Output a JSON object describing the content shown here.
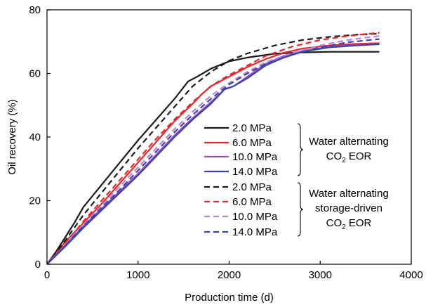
{
  "chart_data": {
    "type": "line",
    "title": "",
    "xlabel": "Production time (d)",
    "ylabel": "Oil recovery (%)",
    "xlim": [
      0,
      4000
    ],
    "ylim": [
      0,
      80
    ],
    "xticks": [
      0,
      1000,
      2000,
      3000,
      4000
    ],
    "yticks": [
      0,
      20,
      40,
      60,
      80
    ],
    "grid": false,
    "legend_position": "center-right",
    "legend_groups": [
      {
        "label_line1": "Water alternating",
        "label_line2": "CO",
        "label_sub": "2",
        "label_line2_after": " EOR",
        "label_line3": ""
      },
      {
        "label_line1": "Water alternating",
        "label_line2": "storage-driven",
        "label_line3": "CO",
        "label_sub": "2",
        "label_line3_after": " EOR"
      }
    ],
    "series": [
      {
        "name": "2.0 MPa",
        "group": 0,
        "color": "#1a1a1a",
        "dash": "solid",
        "x": [
          0,
          100,
          200,
          300,
          400,
          600,
          800,
          1000,
          1200,
          1400,
          1550,
          1650,
          1800,
          2000,
          2200,
          2500,
          2800,
          3100,
          3400,
          3650
        ],
        "y": [
          0,
          4,
          8.5,
          13,
          18,
          25,
          32,
          39,
          45.5,
          52,
          57.5,
          59,
          61.5,
          63.8,
          65,
          66.2,
          66.6,
          66.8,
          66.8,
          66.8
        ]
      },
      {
        "name": "6.0 MPa",
        "group": 0,
        "color": "#e8262b",
        "dash": "solid",
        "x": [
          0,
          100,
          200,
          300,
          400,
          600,
          800,
          1000,
          1200,
          1400,
          1600,
          1700,
          1800,
          2000,
          2200,
          2400,
          2600,
          2800,
          3100,
          3400,
          3650
        ],
        "y": [
          0,
          3.5,
          7,
          10,
          13,
          19,
          25.5,
          32,
          38.5,
          45,
          50.5,
          53.5,
          56,
          59,
          62,
          64.5,
          66.5,
          67.8,
          68.8,
          69.3,
          69.5
        ]
      },
      {
        "name": "10.0 MPa",
        "group": 0,
        "color": "#a24bc4",
        "dash": "solid",
        "x": [
          0,
          100,
          200,
          300,
          400,
          600,
          800,
          1000,
          1200,
          1400,
          1600,
          1800,
          1950,
          2050,
          2200,
          2400,
          2600,
          2800,
          3100,
          3400,
          3650
        ],
        "y": [
          0,
          3,
          6,
          9,
          12,
          17.5,
          23,
          28.5,
          34.5,
          40.5,
          46,
          51,
          55,
          56,
          59,
          63,
          65.5,
          67,
          68.3,
          68.9,
          69.2
        ]
      },
      {
        "name": "14.0 MPa",
        "group": 0,
        "color": "#3b44a8",
        "dash": "solid",
        "x": [
          0,
          100,
          200,
          300,
          400,
          600,
          800,
          1000,
          1200,
          1400,
          1600,
          1800,
          1950,
          2050,
          2200,
          2400,
          2600,
          2800,
          3100,
          3400,
          3650
        ],
        "y": [
          0,
          2.8,
          5.6,
          8.5,
          11.5,
          17,
          22.5,
          28,
          34,
          40,
          45.5,
          50.5,
          55,
          56,
          58.5,
          62.5,
          65,
          66.8,
          68.2,
          68.8,
          69.2
        ]
      },
      {
        "name": "2.0 MPa",
        "group": 1,
        "color": "#1a1a1a",
        "dash": "dashed",
        "x": [
          0,
          100,
          200,
          300,
          400,
          600,
          800,
          1000,
          1200,
          1400,
          1600,
          1800,
          2000,
          2200,
          2500,
          2800,
          3100,
          3400,
          3650
        ],
        "y": [
          0,
          3.5,
          7.5,
          11.5,
          15.5,
          22.5,
          29.5,
          36.5,
          43,
          49.5,
          56,
          60.5,
          64,
          66.3,
          68.8,
          70.5,
          71.5,
          72.2,
          72.5
        ]
      },
      {
        "name": "6.0 MPa",
        "group": 1,
        "color": "#e8262b",
        "dash": "dashed",
        "x": [
          0,
          100,
          200,
          300,
          400,
          600,
          800,
          1000,
          1200,
          1400,
          1600,
          1800,
          2000,
          2200,
          2400,
          2700,
          3000,
          3300,
          3650
        ],
        "y": [
          0,
          3,
          6.5,
          10,
          13.5,
          20,
          26.5,
          33,
          39.5,
          45.5,
          51,
          56,
          59.5,
          62.5,
          65.5,
          68.5,
          70.5,
          71.8,
          72.8
        ]
      },
      {
        "name": "10.0 MPa",
        "group": 1,
        "color": "#b784d6",
        "dash": "dashed",
        "x": [
          0,
          100,
          200,
          300,
          400,
          600,
          800,
          1000,
          1200,
          1400,
          1600,
          1800,
          2000,
          2200,
          2400,
          2700,
          3000,
          3300,
          3650
        ],
        "y": [
          0,
          3,
          6,
          9.5,
          12.5,
          18.5,
          24.5,
          30.5,
          36.5,
          42.5,
          48,
          53,
          57,
          60.5,
          63.5,
          66.5,
          68.8,
          70.5,
          71.8
        ]
      },
      {
        "name": "14.0 MPa",
        "group": 1,
        "color": "#3b44a8",
        "dash": "dashed",
        "x": [
          0,
          100,
          200,
          300,
          400,
          600,
          800,
          1000,
          1200,
          1400,
          1600,
          1800,
          2000,
          2200,
          2400,
          2700,
          3000,
          3300,
          3650
        ],
        "y": [
          0,
          2.8,
          5.8,
          9,
          12,
          17.8,
          23.5,
          29.5,
          35.5,
          41.5,
          47,
          52,
          56.5,
          60,
          63,
          66,
          68.2,
          69.8,
          70.8
        ]
      }
    ]
  }
}
